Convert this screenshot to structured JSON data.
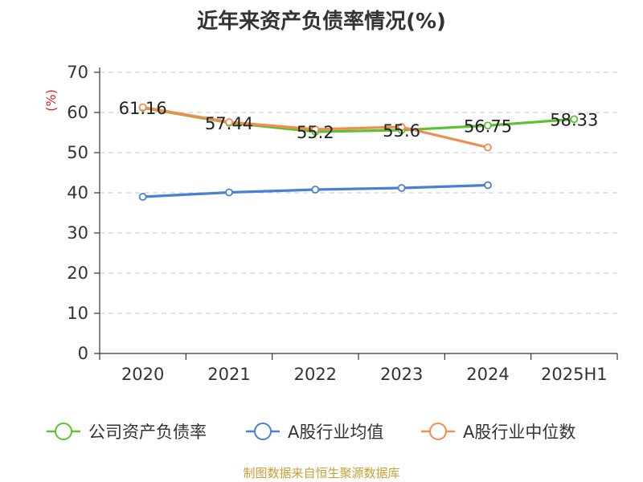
{
  "source_note": "制图数据来自恒生聚源数据库",
  "chart_data": {
    "type": "line",
    "title": "近年来资产负债率情况(%)",
    "ylabel": "(%)",
    "xlabel": "",
    "ylim": [
      0,
      70
    ],
    "yticks": [
      0,
      10,
      20,
      30,
      40,
      50,
      60,
      70
    ],
    "grid": true,
    "legend_position": "bottom",
    "categories": [
      "2020",
      "2021",
      "2022",
      "2023",
      "2024",
      "2025H1"
    ],
    "series": [
      {
        "name": "公司资产负债率",
        "color": "#5ec132",
        "values": [
          61.16,
          57.44,
          55.2,
          55.6,
          56.75,
          58.33
        ],
        "labels": [
          "61.16",
          "57.44",
          "55.2",
          "55.6",
          "56.75",
          "58.33"
        ]
      },
      {
        "name": "A股行业均值",
        "color": "#4a7fd8",
        "values": [
          39.0,
          40.1,
          40.8,
          41.2,
          41.9,
          null
        ]
      },
      {
        "name": "A股行业中位数",
        "color": "#f28c51",
        "values": [
          61.3,
          57.6,
          55.8,
          56.4,
          51.3,
          null
        ]
      }
    ]
  }
}
